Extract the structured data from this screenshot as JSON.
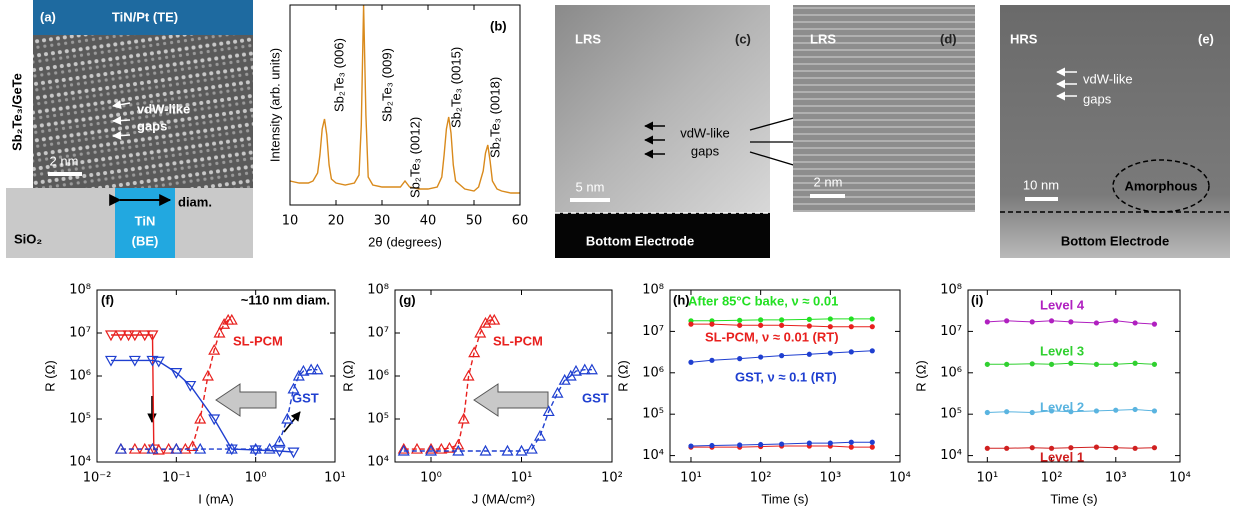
{
  "images": [
    {
      "panel": "(a)",
      "top": "TiN/Pt (TE)",
      "side": "Sb₂Te₃/GeTe",
      "gaps": [
        "vdW-like",
        "gaps"
      ],
      "scale": "2 nm",
      "electrode": [
        "TiN",
        "(BE)"
      ],
      "width": "diam.",
      "substrate": "SiO₂"
    },
    {
      "panel": "(c)",
      "state": "LRS",
      "gaps": [
        "vdW-like",
        "gaps"
      ],
      "scale": "5 nm",
      "electrode": "Bottom Electrode"
    },
    {
      "panel": "(d)",
      "state": "LRS",
      "scale": "2 nm"
    },
    {
      "panel": "(e)",
      "state": "HRS",
      "gaps": [
        "vdW-like",
        "gaps"
      ],
      "scale": "10 nm",
      "region": "Amorphous",
      "electrode": "Bottom Electrode"
    }
  ],
  "chart_data": [
    {
      "type": "line",
      "panel": "(b)",
      "xlabel": "2θ (degrees)",
      "ylabel": "Intensity (arb. units)",
      "color": "#d98a1c",
      "xlim": [
        10,
        60
      ],
      "xticks": [
        10,
        20,
        30,
        40,
        50,
        60
      ],
      "ylim": [
        0,
        1
      ],
      "x": [
        10,
        12,
        14,
        15,
        16,
        16.5,
        17,
        17.5,
        18,
        18.5,
        19,
        20,
        22,
        24,
        25,
        25.5,
        26,
        26.5,
        27,
        28,
        30,
        32,
        34,
        35,
        36,
        38,
        40,
        42,
        43,
        43.5,
        44,
        44.5,
        45,
        45.5,
        46,
        48,
        50,
        51,
        52,
        52.5,
        53,
        53.5,
        54,
        55,
        56,
        58,
        60
      ],
      "values": [
        0.12,
        0.11,
        0.11,
        0.12,
        0.16,
        0.25,
        0.38,
        0.43,
        0.35,
        0.2,
        0.13,
        0.11,
        0.1,
        0.11,
        0.15,
        0.4,
        1.0,
        0.45,
        0.14,
        0.1,
        0.09,
        0.09,
        0.09,
        0.12,
        0.09,
        0.08,
        0.08,
        0.09,
        0.14,
        0.25,
        0.38,
        0.44,
        0.36,
        0.2,
        0.12,
        0.08,
        0.07,
        0.09,
        0.17,
        0.26,
        0.3,
        0.22,
        0.12,
        0.08,
        0.07,
        0.06,
        0.06
      ],
      "annotations": [
        "Sb₂Te₃ (006)",
        "Sb₂Te₃ (009)",
        "Sb₂Te₃ (0012)",
        "Sb₂Te₃ (0015)",
        "Sb₂Te₃ (0018)"
      ]
    },
    {
      "type": "line",
      "panel": "(f)",
      "xlabel": "I (mA)",
      "ylabel": "R (Ω)",
      "xlog": true,
      "ylog": true,
      "xlim": [
        0.01,
        10
      ],
      "ylim": [
        10000,
        100000000
      ],
      "xticks": [
        {
          "value": 0.01,
          "label": "10⁻²"
        },
        {
          "value": 0.1,
          "label": "10⁻¹"
        },
        {
          "value": 1,
          "label": "10⁰"
        },
        {
          "value": 10,
          "label": "10¹"
        }
      ],
      "yticks": [
        {
          "value": 10000,
          "label": "10⁴"
        },
        {
          "value": 100000,
          "label": "10⁵"
        },
        {
          "value": 1000000,
          "label": "10⁶"
        },
        {
          "value": 10000000,
          "label": "10⁷"
        },
        {
          "value": 100000000,
          "label": "10⁸"
        }
      ],
      "annotations": [
        "~110 nm diam."
      ],
      "series": [
        {
          "name": "SL-PCM",
          "color": "#e8201e",
          "curves": [
            {
              "marker": "up",
              "dash": true,
              "x": [
                0.02,
                0.03,
                0.04,
                0.06,
                0.08,
                0.1,
                0.13,
                0.16,
                0.2,
                0.25,
                0.3,
                0.35,
                0.4,
                0.45,
                0.5
              ],
              "values": [
                20000,
                20000,
                20000,
                19000,
                20000,
                20000,
                20000,
                23000,
                100000,
                1000000,
                4000000,
                10000000,
                16000000,
                20000000,
                20000000
              ]
            },
            {
              "marker": "down",
              "dash": false,
              "x": [
                0.015,
                0.02,
                0.025,
                0.03,
                0.04,
                0.05,
                0.052
              ],
              "values": [
                9000000,
                9000000,
                9000000,
                9000000,
                9000000,
                9000000,
                20000
              ]
            }
          ]
        },
        {
          "name": "GST",
          "color": "#1f3fd0",
          "curves": [
            {
              "marker": "up",
              "dash": true,
              "x": [
                0.02,
                0.05,
                0.1,
                0.2,
                0.5,
                1,
                1.5,
                2,
                2.5,
                3,
                3.5,
                4,
                5,
                6
              ],
              "values": [
                20000,
                20000,
                20000,
                20000,
                20000,
                20000,
                20000,
                30000,
                100000,
                500000,
                1000000,
                1300000,
                1400000,
                1400000
              ]
            },
            {
              "marker": "down",
              "dash": false,
              "x": [
                0.015,
                0.03,
                0.05,
                0.06,
                0.1,
                0.15,
                0.3,
                0.5,
                1,
                2,
                3
              ],
              "values": [
                2300000,
                2300000,
                2300000,
                2200000,
                1200000,
                600000,
                100000,
                20000,
                19000,
                18000,
                17000
              ]
            }
          ]
        }
      ]
    },
    {
      "type": "line",
      "panel": "(g)",
      "xlabel": "J (MA/cm²)",
      "ylabel": "R (Ω)",
      "xlog": true,
      "ylog": true,
      "xlim": [
        0.4,
        100
      ],
      "ylim": [
        10000,
        100000000
      ],
      "xticks": [
        {
          "value": 1,
          "label": "10⁰"
        },
        {
          "value": 10,
          "label": "10¹"
        },
        {
          "value": 100,
          "label": "10²"
        }
      ],
      "yticks": [
        {
          "value": 10000,
          "label": "10⁴"
        },
        {
          "value": 100000,
          "label": "10⁵"
        },
        {
          "value": 1000000,
          "label": "10⁶"
        },
        {
          "value": 10000000,
          "label": "10⁷"
        },
        {
          "value": 100000000,
          "label": "10⁸"
        }
      ],
      "series": [
        {
          "name": "SL-PCM",
          "color": "#e8201e",
          "curves": [
            {
              "marker": "up",
              "dash": true,
              "x": [
                0.5,
                0.7,
                1,
                1.3,
                1.6,
                2,
                2.3,
                2.6,
                3,
                3.5,
                4,
                4.5,
                5
              ],
              "values": [
                20000,
                20000,
                20000,
                20000,
                21000,
                25000,
                100000,
                1000000,
                3500000,
                10000000,
                17000000,
                20000000,
                20000000
              ]
            }
          ]
        },
        {
          "name": "GST",
          "color": "#1f3fd0",
          "curves": [
            {
              "marker": "up",
              "dash": true,
              "x": [
                0.5,
                1,
                2,
                4,
                7,
                10,
                13,
                16,
                20,
                25,
                30,
                35,
                40,
                50,
                60
              ],
              "values": [
                18000,
                18000,
                18000,
                18000,
                18000,
                18000,
                20000,
                40000,
                150000,
                400000,
                800000,
                1000000,
                1300000,
                1400000,
                1400000
              ]
            }
          ]
        }
      ]
    },
    {
      "type": "line",
      "panel": "(h)",
      "xlabel": "Time (s)",
      "ylabel": "R (Ω)",
      "xlog": true,
      "ylog": true,
      "xlim": [
        5,
        10000
      ],
      "ylim": [
        7000,
        100000000
      ],
      "xticks": [
        {
          "value": 10,
          "label": "10¹"
        },
        {
          "value": 100,
          "label": "10²"
        },
        {
          "value": 1000,
          "label": "10³"
        },
        {
          "value": 10000,
          "label": "10⁴"
        }
      ],
      "yticks": [
        {
          "value": 10000,
          "label": "10⁴"
        },
        {
          "value": 100000,
          "label": "10⁵"
        },
        {
          "value": 1000000,
          "label": "10⁶"
        },
        {
          "value": 10000000,
          "label": "10⁷"
        },
        {
          "value": 100000000,
          "label": "10⁸"
        }
      ],
      "x": [
        10,
        20,
        50,
        100,
        200,
        500,
        1000,
        2000,
        4000
      ],
      "series": [
        {
          "name": "After 85°C bake, ν ≈ 0.01",
          "color": "#22e022",
          "curves": [
            {
              "marker": "dot",
              "values": [
                18000000,
                18000000,
                18500000,
                19000000,
                19000000,
                19500000,
                20000000,
                20000000,
                20000000
              ]
            }
          ]
        },
        {
          "name": "SL-PCM, ν ≈ 0.01 (RT)",
          "color": "#e8201e",
          "curves": [
            {
              "marker": "dot",
              "values": [
                15000000,
                15000000,
                14000000,
                14000000,
                14000000,
                13500000,
                13000000,
                13000000,
                13000000
              ]
            },
            {
              "marker": "dot",
              "values": [
                16000,
                16000,
                16000,
                16500,
                17000,
                17000,
                17000,
                16000,
                16000
              ]
            }
          ]
        },
        {
          "name": "GST, ν ≈ 0.1 (RT)",
          "color": "#1f3fd0",
          "curves": [
            {
              "marker": "dot",
              "values": [
                1800000,
                2000000,
                2200000,
                2400000,
                2600000,
                2800000,
                3000000,
                3200000,
                3400000
              ]
            },
            {
              "marker": "dot",
              "values": [
                17000,
                17500,
                18000,
                18500,
                19000,
                20000,
                20000,
                21000,
                21000
              ]
            }
          ]
        }
      ]
    },
    {
      "type": "line",
      "panel": "(i)",
      "xlabel": "Time (s)",
      "ylabel": "R (Ω)",
      "xlog": true,
      "ylog": true,
      "xlim": [
        5,
        10000
      ],
      "ylim": [
        7000,
        100000000
      ],
      "xticks": [
        {
          "value": 10,
          "label": "10¹"
        },
        {
          "value": 100,
          "label": "10²"
        },
        {
          "value": 1000,
          "label": "10³"
        },
        {
          "value": 10000,
          "label": "10⁴"
        }
      ],
      "yticks": [
        {
          "value": 10000,
          "label": "10⁴"
        },
        {
          "value": 100000,
          "label": "10⁵"
        },
        {
          "value": 1000000,
          "label": "10⁶"
        },
        {
          "value": 10000000,
          "label": "10⁷"
        },
        {
          "value": 100000000,
          "label": "10⁸"
        }
      ],
      "x": [
        10,
        20,
        50,
        100,
        200,
        500,
        1000,
        2000,
        4000
      ],
      "series": [
        {
          "name": "Level 4",
          "color": "#b020c0",
          "curves": [
            {
              "marker": "dot",
              "values": [
                17000000,
                18000000,
                17000000,
                18000000,
                17000000,
                16000000,
                18000000,
                16000000,
                15000000
              ]
            }
          ]
        },
        {
          "name": "Level 3",
          "color": "#30d030",
          "curves": [
            {
              "marker": "dot",
              "values": [
                1600000,
                1600000,
                1650000,
                1600000,
                1700000,
                1600000,
                1600000,
                1700000,
                1600000
              ]
            }
          ]
        },
        {
          "name": "Level 2",
          "color": "#5ab4e0",
          "curves": [
            {
              "marker": "dot",
              "values": [
                110000,
                115000,
                110000,
                120000,
                115000,
                120000,
                125000,
                130000,
                120000
              ]
            }
          ]
        },
        {
          "name": "Level 1",
          "color": "#d02020",
          "curves": [
            {
              "marker": "dot",
              "values": [
                15000,
                15000,
                15500,
                15000,
                15500,
                16000,
                15500,
                15000,
                15500
              ]
            }
          ]
        }
      ]
    }
  ]
}
